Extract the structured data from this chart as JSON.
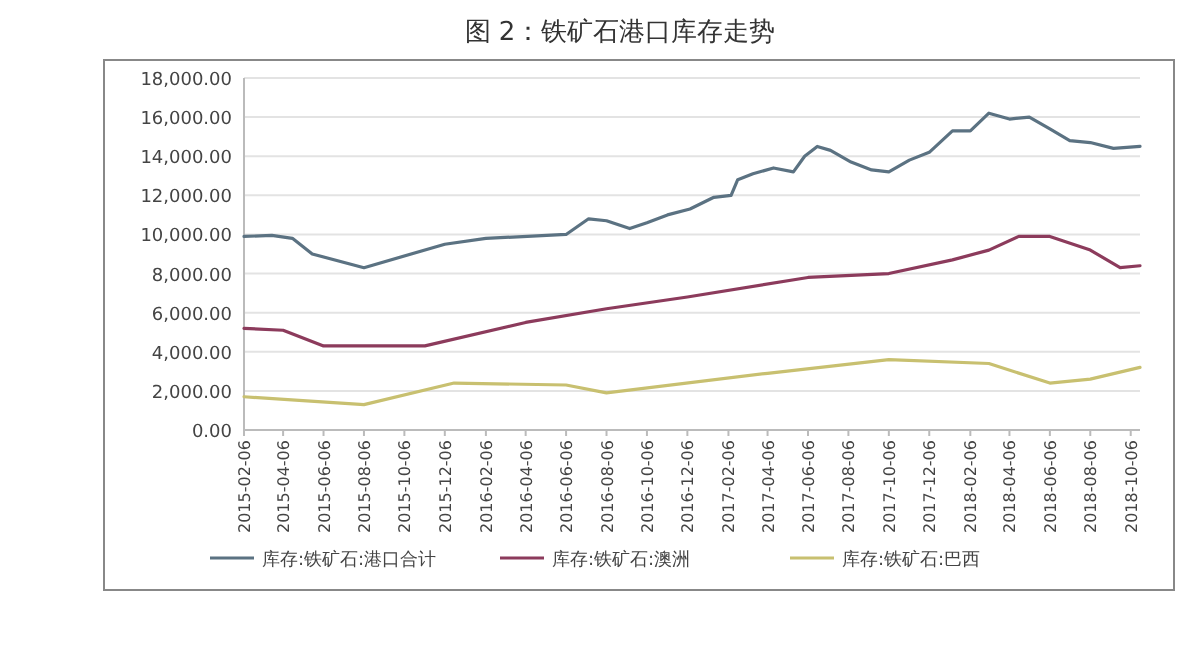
{
  "chart_data": {
    "type": "line",
    "title": "图 2：铁矿石港口库存走势",
    "xlim": [
      "2015-02-06",
      "2018-10-20"
    ],
    "xticks": [
      "2015-02-06",
      "2015-04-06",
      "2015-06-06",
      "2015-08-06",
      "2015-10-06",
      "2015-12-06",
      "2016-02-06",
      "2016-04-06",
      "2016-06-06",
      "2016-08-06",
      "2016-10-06",
      "2016-12-06",
      "2017-02-06",
      "2017-04-06",
      "2017-06-06",
      "2017-08-06",
      "2017-10-06",
      "2017-12-06",
      "2018-02-06",
      "2018-04-06",
      "2018-06-06",
      "2018-08-06",
      "2018-10-06"
    ],
    "ylim": [
      0,
      18000
    ],
    "yticks": [
      {
        "value": 0,
        "label": "0.00"
      },
      {
        "value": 2000,
        "label": "2,000.00"
      },
      {
        "value": 4000,
        "label": "4,000.00"
      },
      {
        "value": 6000,
        "label": "6,000.00"
      },
      {
        "value": 8000,
        "label": "8,000.00"
      },
      {
        "value": 10000,
        "label": "10,000.00"
      },
      {
        "value": 12000,
        "label": "12,000.00"
      },
      {
        "value": 14000,
        "label": "14,000.00"
      },
      {
        "value": 16000,
        "label": "16,000.00"
      },
      {
        "value": 18000,
        "label": "18,000.00"
      }
    ],
    "grid": "y",
    "legend": "bottom",
    "marker": "none",
    "line_style": "solid",
    "series": [
      {
        "name": "库存:铁矿石:港口合计",
        "color": "#5b7282",
        "x": [
          "2015-02-06",
          "2015-03-20",
          "2015-04-20",
          "2015-05-20",
          "2015-08-06",
          "2015-12-06",
          "2016-02-06",
          "2016-06-06",
          "2016-07-10",
          "2016-08-06",
          "2016-09-10",
          "2016-10-06",
          "2016-11-06",
          "2016-12-10",
          "2017-01-15",
          "2017-02-10",
          "2017-02-20",
          "2017-03-15",
          "2017-04-15",
          "2017-05-15",
          "2017-06-01",
          "2017-06-20",
          "2017-07-10",
          "2017-08-10",
          "2017-09-10",
          "2017-10-06",
          "2017-11-06",
          "2017-12-06",
          "2018-01-10",
          "2018-02-06",
          "2018-03-06",
          "2018-04-06",
          "2018-05-06",
          "2018-06-06",
          "2018-07-06",
          "2018-08-06",
          "2018-09-10",
          "2018-10-20"
        ],
        "values": [
          9900,
          9950,
          9800,
          9000,
          8300,
          9500,
          9800,
          10000,
          10800,
          10700,
          10300,
          10600,
          11000,
          11300,
          11900,
          12000,
          12800,
          13100,
          13400,
          13200,
          14000,
          14500,
          14300,
          13700,
          13300,
          13200,
          13800,
          14200,
          15300,
          15300,
          16200,
          15900,
          16000,
          15400,
          14800,
          14700,
          14400,
          14500
        ]
      },
      {
        "name": "库存:铁矿石:澳洲",
        "color": "#8c3b5c",
        "x": [
          "2015-02-06",
          "2015-04-06",
          "2015-06-06",
          "2015-11-06",
          "2016-04-06",
          "2016-08-06",
          "2016-12-06",
          "2017-06-06",
          "2017-10-06",
          "2018-01-10",
          "2018-03-06",
          "2018-04-20",
          "2018-06-06",
          "2018-08-06",
          "2018-09-20",
          "2018-10-20"
        ],
        "values": [
          5200,
          5100,
          4300,
          4300,
          5500,
          6200,
          6800,
          7800,
          8000,
          8700,
          9200,
          9900,
          9900,
          9200,
          8300,
          8400
        ]
      },
      {
        "name": "库存:铁矿石:巴西",
        "color": "#c8c070",
        "x": [
          "2015-02-06",
          "2015-05-06",
          "2015-08-06",
          "2015-12-20",
          "2016-06-06",
          "2016-08-06",
          "2017-04-06",
          "2017-10-06",
          "2018-03-06",
          "2018-06-06",
          "2018-08-06",
          "2018-10-20"
        ],
        "values": [
          1700,
          1500,
          1300,
          2400,
          2300,
          1900,
          2900,
          3600,
          3400,
          2400,
          2600,
          3200
        ]
      }
    ]
  }
}
